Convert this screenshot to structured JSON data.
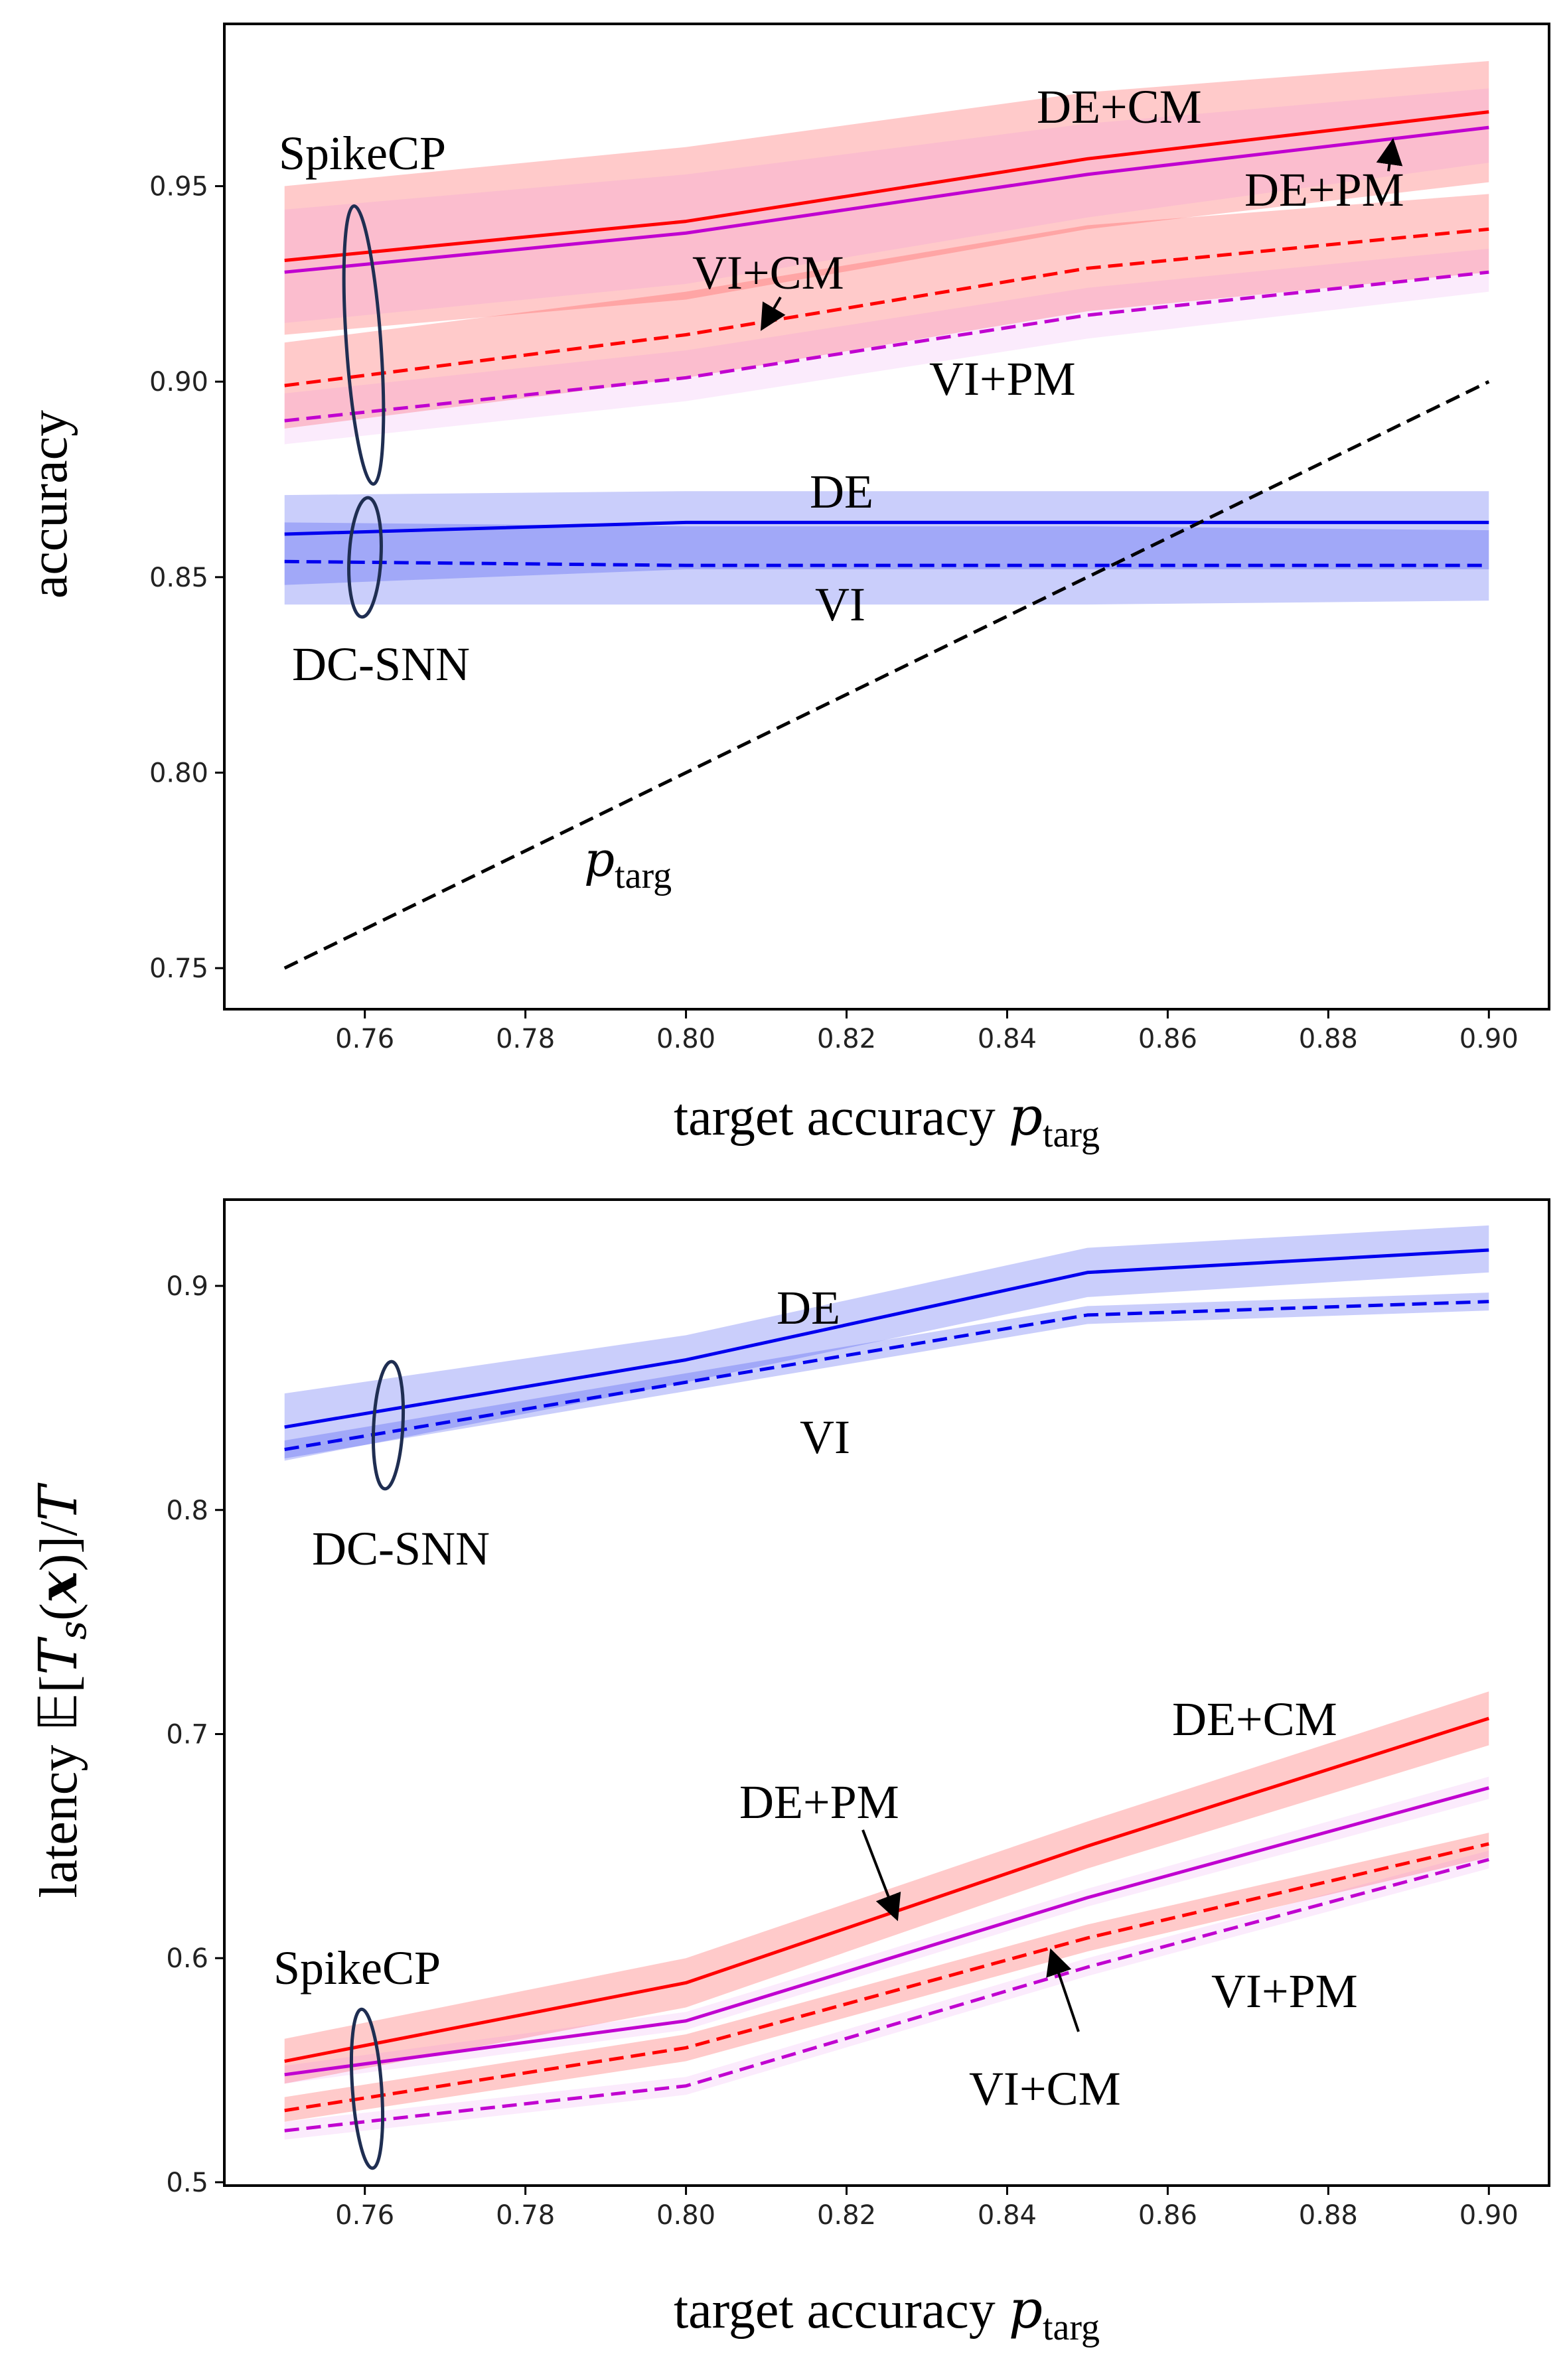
{
  "chart_data": [
    {
      "type": "line",
      "title": "",
      "xlabel": "target accuracy",
      "xlabel_symbol": "p",
      "xlabel_subscript": "targ",
      "ylabel": "accuracy",
      "xlim": [
        0.7425,
        0.9075
      ],
      "ylim": [
        0.7395,
        0.9915
      ],
      "xticks": [
        0.76,
        0.78,
        0.8,
        0.82,
        0.84,
        0.86,
        0.88,
        0.9
      ],
      "xtick_labels": [
        "0.76",
        "0.78",
        "0.80",
        "0.82",
        "0.84",
        "0.86",
        "0.88",
        "0.90"
      ],
      "yticks": [
        0.75,
        0.8,
        0.85,
        0.9,
        0.95
      ],
      "ytick_labels": [
        "0.75",
        "0.80",
        "0.85",
        "0.90",
        "0.95"
      ],
      "x": [
        0.75,
        0.8,
        0.85,
        0.9
      ],
      "series": [
        {
          "name": "DE+CM",
          "color": "#ff0000",
          "dash": "solid",
          "values": [
            0.931,
            0.941,
            0.957,
            0.969
          ],
          "band_lower": [
            0.912,
            0.921,
            0.939,
            0.951
          ],
          "band_upper": [
            0.95,
            0.96,
            0.974,
            0.982
          ]
        },
        {
          "name": "DE+PM",
          "color": "#c000d0",
          "dash": "solid",
          "values": [
            0.928,
            0.938,
            0.953,
            0.965
          ],
          "band_lower": [
            0.915,
            0.925,
            0.942,
            0.956
          ],
          "band_upper": [
            0.944,
            0.953,
            0.966,
            0.975
          ]
        },
        {
          "name": "VI+CM",
          "color": "#ff0000",
          "dash": "dashed",
          "values": [
            0.899,
            0.912,
            0.929,
            0.939
          ],
          "band_lower": [
            0.888,
            0.901,
            0.918,
            0.928
          ],
          "band_upper": [
            0.91,
            0.923,
            0.94,
            0.948
          ]
        },
        {
          "name": "VI+PM",
          "color": "#c000d0",
          "dash": "dashed",
          "values": [
            0.89,
            0.901,
            0.917,
            0.928
          ],
          "band_lower": [
            0.884,
            0.895,
            0.911,
            0.923
          ],
          "band_upper": [
            0.897,
            0.908,
            0.924,
            0.934
          ]
        },
        {
          "name": "DE",
          "color": "#0000ee",
          "dash": "solid",
          "values": [
            0.861,
            0.864,
            0.864,
            0.864
          ],
          "band_lower": [
            0.848,
            0.852,
            0.852,
            0.852
          ],
          "band_upper": [
            0.871,
            0.872,
            0.872,
            0.872
          ]
        },
        {
          "name": "VI",
          "color": "#0000ee",
          "dash": "dashed",
          "values": [
            0.854,
            0.853,
            0.853,
            0.853
          ],
          "band_lower": [
            0.843,
            0.843,
            0.843,
            0.844
          ],
          "band_upper": [
            0.864,
            0.863,
            0.863,
            0.862
          ]
        },
        {
          "name": "p_targ",
          "color": "#000000",
          "dash": "dashed",
          "values": [
            0.75,
            0.8,
            0.85,
            0.9
          ]
        }
      ],
      "annotations": {
        "spikecp": "SpikeCP",
        "de_cm": "DE+CM",
        "de_pm": "DE+PM",
        "vi_cm": "VI+CM",
        "vi_pm": "VI+PM",
        "de": "DE",
        "vi": "VI",
        "dcsnn": "DC-SNN",
        "ptarg_symbol": "p",
        "ptarg_subscript": "targ"
      }
    },
    {
      "type": "line",
      "title": "",
      "xlabel": "target accuracy",
      "xlabel_symbol": "p",
      "xlabel_subscript": "targ",
      "ylabel": "latency 𝔼[T_s(x)]/T",
      "ylabel_prefix": "latency 𝔼[",
      "ylabel_T": "T",
      "ylabel_s": "s",
      "ylabel_paren_open": "(",
      "ylabel_x": "x",
      "ylabel_suffix": ")]/",
      "ylabel_T2": "T",
      "xlim": [
        0.7425,
        0.9075
      ],
      "ylim": [
        0.4985,
        0.9385
      ],
      "xticks": [
        0.76,
        0.78,
        0.8,
        0.82,
        0.84,
        0.86,
        0.88,
        0.9
      ],
      "xtick_labels": [
        "0.76",
        "0.78",
        "0.80",
        "0.82",
        "0.84",
        "0.86",
        "0.88",
        "0.90"
      ],
      "yticks": [
        0.5,
        0.6,
        0.7,
        0.8,
        0.9
      ],
      "ytick_labels": [
        "0.5",
        "0.6",
        "0.7",
        "0.8",
        "0.9"
      ],
      "x": [
        0.75,
        0.8,
        0.85,
        0.9
      ],
      "series": [
        {
          "name": "DE",
          "color": "#0000ee",
          "dash": "solid",
          "values": [
            0.837,
            0.867,
            0.906,
            0.916
          ],
          "band_lower": [
            0.822,
            0.857,
            0.895,
            0.906
          ],
          "band_upper": [
            0.852,
            0.878,
            0.917,
            0.927
          ]
        },
        {
          "name": "VI",
          "color": "#0000ee",
          "dash": "dashed",
          "values": [
            0.827,
            0.857,
            0.887,
            0.893
          ],
          "band_lower": [
            0.823,
            0.853,
            0.883,
            0.889
          ],
          "band_upper": [
            0.831,
            0.861,
            0.891,
            0.897
          ]
        },
        {
          "name": "DE+CM",
          "color": "#ff0000",
          "dash": "solid",
          "values": [
            0.554,
            0.589,
            0.65,
            0.707
          ],
          "band_lower": [
            0.544,
            0.578,
            0.64,
            0.695
          ],
          "band_upper": [
            0.564,
            0.6,
            0.661,
            0.719
          ]
        },
        {
          "name": "DE+PM",
          "color": "#c000d0",
          "dash": "solid",
          "values": [
            0.548,
            0.572,
            0.627,
            0.676
          ],
          "band_lower": [
            0.544,
            0.568,
            0.623,
            0.671
          ],
          "band_upper": [
            0.552,
            0.576,
            0.631,
            0.681
          ]
        },
        {
          "name": "VI+CM",
          "color": "#ff0000",
          "dash": "dashed",
          "values": [
            0.532,
            0.56,
            0.609,
            0.651
          ],
          "band_lower": [
            0.527,
            0.554,
            0.603,
            0.645
          ],
          "band_upper": [
            0.538,
            0.566,
            0.615,
            0.656
          ]
        },
        {
          "name": "VI+PM",
          "color": "#c000d0",
          "dash": "dashed",
          "values": [
            0.523,
            0.543,
            0.596,
            0.644
          ],
          "band_lower": [
            0.519,
            0.539,
            0.592,
            0.64
          ],
          "band_upper": [
            0.527,
            0.547,
            0.6,
            0.648
          ]
        }
      ],
      "annotations": {
        "de": "DE",
        "vi": "VI",
        "dcsnn": "DC-SNN",
        "de_cm": "DE+CM",
        "de_pm": "DE+PM",
        "spikecp": "SpikeCP",
        "vi_cm": "VI+CM",
        "vi_pm": "VI+PM"
      }
    }
  ]
}
